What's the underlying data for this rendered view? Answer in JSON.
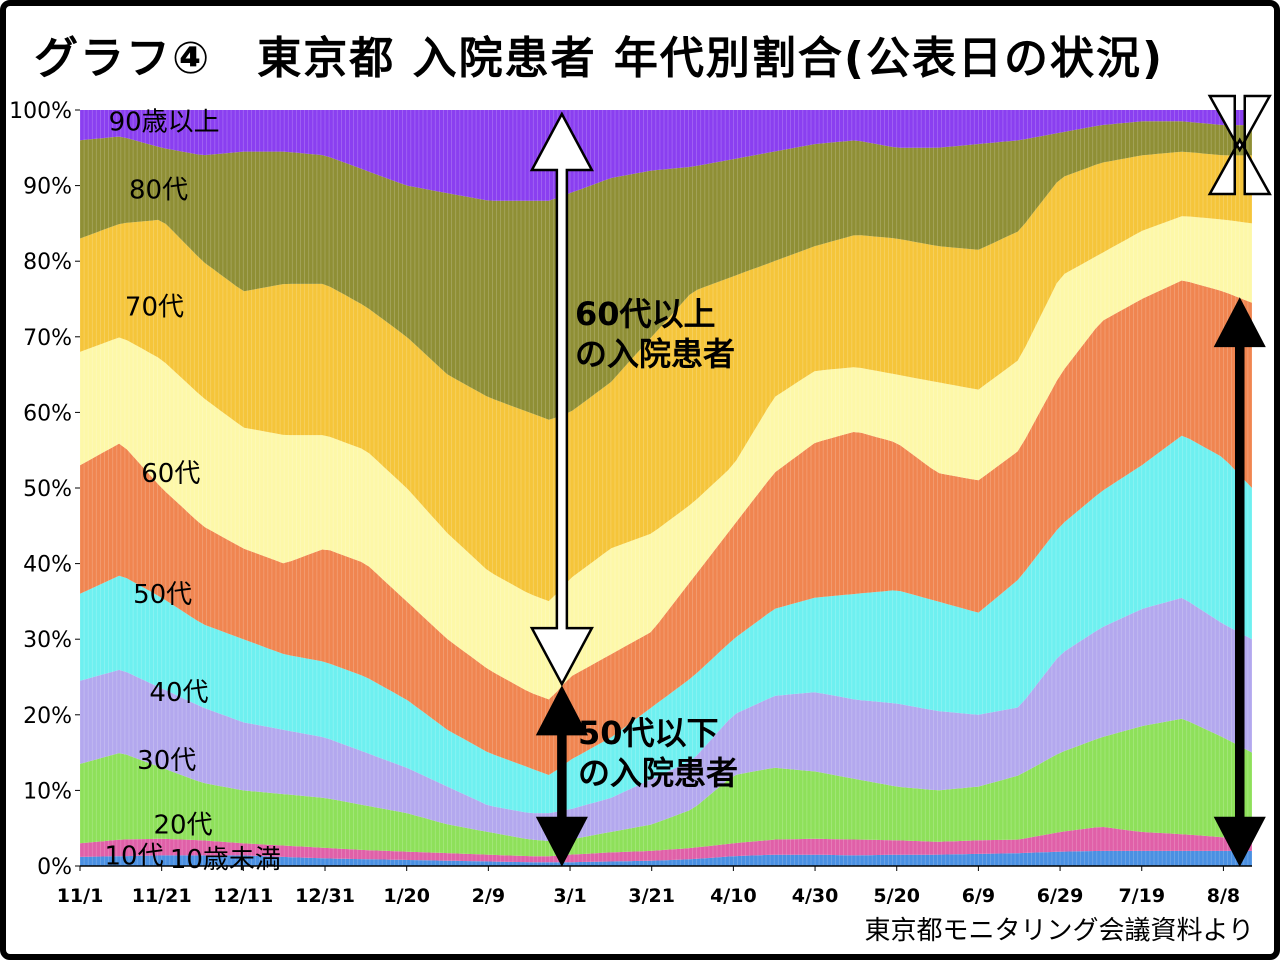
{
  "chart_data": {
    "type": "area",
    "stacked": true,
    "normalized_percent": true,
    "title": "グラフ④　東京都 入院患者 年代別割合(公表日の状況)",
    "source": "東京都モニタリング会議資料より",
    "ylabel": "",
    "xlabel": "",
    "ylim": [
      0,
      100
    ],
    "y_ticks": [
      "0%",
      "10%",
      "20%",
      "30%",
      "40%",
      "50%",
      "60%",
      "70%",
      "80%",
      "90%",
      "100%"
    ],
    "x_tick_labels": [
      "11/1",
      "11/21",
      "12/11",
      "12/31",
      "1/20",
      "2/9",
      "3/1",
      "3/21",
      "4/10",
      "4/30",
      "5/20",
      "6/9",
      "6/29",
      "7/19",
      "8/8"
    ],
    "x_tick_days": [
      0,
      20,
      40,
      60,
      80,
      100,
      120,
      140,
      160,
      180,
      200,
      220,
      240,
      260,
      280
    ],
    "x_range_days": [
      0,
      287
    ],
    "knot_days": [
      0,
      10,
      20,
      30,
      40,
      50,
      60,
      70,
      80,
      90,
      100,
      110,
      115,
      120,
      130,
      140,
      150,
      160,
      170,
      180,
      190,
      200,
      210,
      220,
      230,
      240,
      250,
      260,
      270,
      280,
      287
    ],
    "cumulative_top_boundaries": [
      {
        "name": "10歳未満",
        "color": "#4a90e2",
        "values": [
          1.2,
          1.3,
          1.4,
          1.4,
          1.4,
          1.2,
          1.0,
          0.9,
          0.8,
          0.7,
          0.6,
          0.5,
          0.5,
          0.5,
          0.6,
          0.7,
          0.9,
          1.3,
          1.5,
          1.5,
          1.4,
          1.5,
          1.5,
          1.6,
          1.7,
          1.9,
          2.0,
          2.0,
          2.0,
          2.0,
          2.0
        ]
      },
      {
        "name": "10代",
        "color": "#e060a8",
        "values": [
          3.0,
          3.5,
          3.6,
          3.4,
          3.0,
          2.7,
          2.4,
          2.1,
          1.9,
          1.7,
          1.5,
          1.3,
          1.3,
          1.5,
          1.8,
          2.0,
          2.4,
          3.0,
          3.5,
          3.6,
          3.5,
          3.4,
          3.2,
          3.4,
          3.5,
          4.5,
          5.2,
          4.5,
          4.2,
          3.8,
          3.5
        ]
      },
      {
        "name": "20代",
        "color": "#8ee05a",
        "values": [
          13.5,
          15.0,
          13.0,
          11.0,
          10.0,
          9.5,
          9.0,
          8.0,
          7.0,
          5.5,
          4.5,
          3.5,
          3.3,
          3.5,
          4.5,
          5.5,
          7.5,
          12.0,
          13.0,
          12.5,
          11.5,
          10.5,
          10.0,
          10.5,
          12.0,
          15.0,
          17.0,
          18.5,
          19.5,
          17.0,
          15.0
        ]
      },
      {
        "name": "30代",
        "color": "#b3a8ee",
        "values": [
          24.5,
          26.0,
          23.5,
          21.0,
          19.0,
          18.0,
          17.0,
          15.0,
          13.0,
          10.5,
          8.0,
          7.0,
          7.0,
          7.5,
          9.0,
          11.5,
          14.0,
          20.0,
          22.5,
          23.0,
          22.0,
          21.5,
          20.5,
          20.0,
          21.0,
          28.0,
          31.5,
          34.0,
          35.5,
          32.0,
          30.0
        ]
      },
      {
        "name": "40代",
        "color": "#6ef0f0",
        "values": [
          36.0,
          38.5,
          35.5,
          32.0,
          30.0,
          28.0,
          27.0,
          25.0,
          22.0,
          18.0,
          15.0,
          13.0,
          12.0,
          14.0,
          17.0,
          21.0,
          25.0,
          30.0,
          34.0,
          35.5,
          36.0,
          36.5,
          35.0,
          33.5,
          38.0,
          45.0,
          49.5,
          53.0,
          57.0,
          54.0,
          50.0
        ]
      },
      {
        "name": "50代",
        "color": "#f08550",
        "values": [
          53.0,
          56.0,
          50.0,
          45.0,
          42.0,
          40.0,
          42.0,
          40.0,
          35.0,
          30.0,
          26.0,
          23.0,
          22.0,
          25.0,
          28.0,
          31.0,
          38.0,
          45.0,
          52.0,
          56.0,
          57.5,
          56.0,
          52.0,
          51.0,
          55.0,
          65.0,
          72.0,
          75.0,
          77.5,
          76.0,
          74.5
        ]
      },
      {
        "name": "60代",
        "color": "#fdf8a8",
        "values": [
          68.0,
          70.0,
          67.0,
          62.0,
          58.0,
          57.0,
          57.0,
          55.0,
          50.0,
          44.0,
          39.0,
          36.0,
          35.0,
          38.0,
          42.0,
          44.0,
          48.0,
          53.0,
          62.0,
          65.5,
          66.0,
          65.0,
          64.0,
          63.0,
          67.0,
          78.0,
          81.0,
          84.0,
          86.0,
          85.5,
          85.0
        ]
      },
      {
        "name": "70代",
        "color": "#f5c53a",
        "values": [
          83.0,
          85.0,
          85.5,
          80.0,
          76.0,
          77.0,
          77.0,
          74.0,
          70.0,
          65.0,
          62.0,
          60.0,
          59.0,
          60.0,
          64.0,
          70.0,
          76.0,
          78.0,
          80.0,
          82.0,
          83.5,
          83.0,
          82.0,
          81.5,
          84.0,
          91.0,
          93.0,
          94.0,
          94.5,
          94.0,
          94.0
        ]
      },
      {
        "name": "80代",
        "color": "#8f8f35",
        "values": [
          96.0,
          96.5,
          95.0,
          94.0,
          94.5,
          94.5,
          94.0,
          92.0,
          90.0,
          89.0,
          88.0,
          88.0,
          88.0,
          89.0,
          91.0,
          92.0,
          92.5,
          93.5,
          94.5,
          95.5,
          96.0,
          95.0,
          95.0,
          95.5,
          96.0,
          97.0,
          98.0,
          98.5,
          98.5,
          98.0,
          98.0
        ]
      },
      {
        "name": "90歳以上",
        "color": "#8a3ff0",
        "values": [
          100,
          100,
          100,
          100,
          100,
          100,
          100,
          100,
          100,
          100,
          100,
          100,
          100,
          100,
          100,
          100,
          100,
          100,
          100,
          100,
          100,
          100,
          100,
          100,
          100,
          100,
          100,
          100,
          100,
          100,
          100
        ]
      }
    ],
    "series_labels": [
      "10歳未満",
      "10代",
      "20代",
      "30代",
      "40代",
      "50代",
      "60代",
      "70代",
      "80代",
      "90歳以上"
    ],
    "annotations": [
      {
        "text_lines": [
          "60代以上",
          "の入院患者"
        ],
        "arrow_style": "hollow-white"
      },
      {
        "text_lines": [
          "50代以下",
          "の入院患者"
        ],
        "arrow_style": "solid-black"
      }
    ]
  }
}
